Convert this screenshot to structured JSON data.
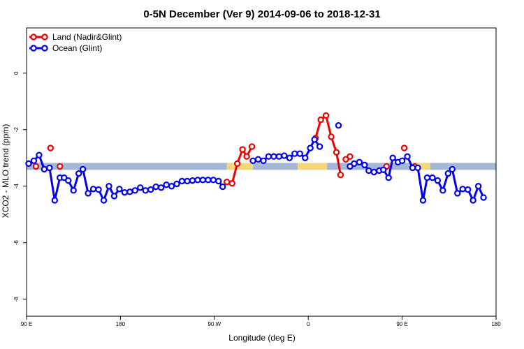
{
  "chart_data": {
    "type": "line",
    "title": "0-5N December (Ver 9)   2014-09-06 to 2018-12-31",
    "xlabel": "Longitude (deg E)",
    "ylabel": "XCO2 - MLO trend (ppm)",
    "xlim": [
      90,
      540
    ],
    "ylim": [
      -8.6,
      1.6
    ],
    "x_ticks": [
      {
        "value": 90,
        "label": "90 E"
      },
      {
        "value": 180,
        "label": "180"
      },
      {
        "value": 270,
        "label": "90 W"
      },
      {
        "value": 360,
        "label": "0"
      },
      {
        "value": 450,
        "label": "90 E"
      },
      {
        "value": 540,
        "label": "180"
      }
    ],
    "y_ticks": [
      {
        "value": 0,
        "label": "0"
      },
      {
        "value": -2,
        "label": "-2"
      },
      {
        "value": -4,
        "label": "-4"
      },
      {
        "value": -6,
        "label": "-6"
      },
      {
        "value": -8,
        "label": "-8"
      }
    ],
    "reference_band": {
      "y": -3.3,
      "segments": [
        {
          "x": [
            90,
            282
          ],
          "color": "#a5b8d8"
        },
        {
          "x": [
            282,
            307
          ],
          "color": "#f5d77a"
        },
        {
          "x": [
            307,
            350
          ],
          "color": "#a5b8d8"
        },
        {
          "x": [
            350,
            378
          ],
          "color": "#f5d77a"
        },
        {
          "x": [
            378,
            458
          ],
          "color": "#a5b8d8"
        },
        {
          "x": [
            458,
            477
          ],
          "color": "#f5d77a"
        },
        {
          "x": [
            477,
            540
          ],
          "color": "#a5b8d8"
        }
      ]
    },
    "legend": {
      "position": "top-left"
    },
    "series": [
      {
        "name": "Land (Nadir&Glint)",
        "color": "#ee0000",
        "points": [
          [
            99,
            -3.3
          ],
          [
            113,
            -2.65
          ],
          [
            122,
            -3.3
          ],
          [
            282,
            -3.85
          ],
          [
            287,
            -3.9
          ],
          [
            292,
            -3.2
          ],
          [
            297,
            -2.7
          ],
          [
            301,
            -2.95
          ],
          [
            306,
            -2.6
          ],
          [
            367,
            -2.3
          ],
          [
            372,
            -1.65
          ],
          [
            377,
            -1.5
          ],
          [
            382,
            -2.25
          ],
          [
            387,
            -2.8
          ],
          [
            391,
            -3.6
          ],
          [
            396,
            -3.05
          ],
          [
            400,
            -2.95
          ],
          [
            435,
            -3.3
          ],
          [
            452,
            -2.65
          ],
          [
            462,
            -3.3
          ]
        ],
        "segments": [
          [
            3,
            4,
            5,
            6,
            7,
            8
          ],
          [
            9,
            10,
            11,
            12,
            13,
            14
          ],
          [
            15,
            16
          ]
        ]
      },
      {
        "name": "Ocean (Glint)",
        "color": "#0000ee",
        "points": [
          [
            92,
            -3.2
          ],
          [
            97,
            -3.1
          ],
          [
            102,
            -2.9
          ],
          [
            107,
            -3.4
          ],
          [
            112,
            -3.35
          ],
          [
            117,
            -4.5
          ],
          [
            122,
            -3.7
          ],
          [
            126,
            -3.7
          ],
          [
            130,
            -3.8
          ],
          [
            135,
            -4.15
          ],
          [
            140,
            -3.55
          ],
          [
            144,
            -3.4
          ],
          [
            149,
            -4.25
          ],
          [
            154,
            -4.1
          ],
          [
            159,
            -4.12
          ],
          [
            164,
            -4.5
          ],
          [
            169,
            -4.0
          ],
          [
            174,
            -4.35
          ],
          [
            179,
            -4.1
          ],
          [
            184,
            -4.22
          ],
          [
            189,
            -4.2
          ],
          [
            194,
            -4.15
          ],
          [
            199,
            -4.05
          ],
          [
            204,
            -4.15
          ],
          [
            209,
            -4.12
          ],
          [
            214,
            -4.02
          ],
          [
            219,
            -4.05
          ],
          [
            224,
            -3.95
          ],
          [
            229,
            -4.0
          ],
          [
            234,
            -3.92
          ],
          [
            239,
            -3.82
          ],
          [
            244,
            -3.82
          ],
          [
            249,
            -3.8
          ],
          [
            254,
            -3.78
          ],
          [
            259,
            -3.78
          ],
          [
            264,
            -3.78
          ],
          [
            269,
            -3.78
          ],
          [
            274,
            -3.82
          ],
          [
            278,
            -4.02
          ],
          [
            307,
            -3.1
          ],
          [
            312,
            -3.05
          ],
          [
            317,
            -3.1
          ],
          [
            322,
            -2.95
          ],
          [
            327,
            -2.95
          ],
          [
            332,
            -2.95
          ],
          [
            337,
            -2.92
          ],
          [
            342,
            -3.0
          ],
          [
            347,
            -2.85
          ],
          [
            352,
            -2.85
          ],
          [
            357,
            -3.0
          ],
          [
            362,
            -2.65
          ],
          [
            366,
            -2.35
          ],
          [
            371,
            -2.6
          ],
          [
            389,
            -1.85
          ],
          [
            400,
            -3.3
          ],
          [
            404,
            -3.2
          ],
          [
            409,
            -3.15
          ],
          [
            414,
            -3.25
          ],
          [
            418,
            -3.45
          ],
          [
            423,
            -3.5
          ],
          [
            428,
            -3.45
          ],
          [
            432,
            -3.42
          ],
          [
            437,
            -3.7
          ],
          [
            441,
            -3.0
          ],
          [
            446,
            -3.15
          ],
          [
            450,
            -3.1
          ],
          [
            455,
            -2.95
          ],
          [
            460,
            -3.35
          ],
          [
            465,
            -3.35
          ],
          [
            470,
            -4.5
          ],
          [
            474,
            -3.7
          ],
          [
            479,
            -3.7
          ],
          [
            484,
            -3.8
          ],
          [
            489,
            -4.15
          ],
          [
            494,
            -3.55
          ],
          [
            498,
            -3.4
          ],
          [
            503,
            -4.25
          ],
          [
            508,
            -4.1
          ],
          [
            513,
            -4.12
          ],
          [
            518,
            -4.5
          ],
          [
            523,
            -4.0
          ],
          [
            528,
            -4.4
          ]
        ],
        "segments": [
          [
            0,
            1,
            2,
            3,
            4,
            5,
            6,
            7,
            8,
            9,
            10,
            11,
            12,
            13,
            14,
            15,
            16,
            17,
            18,
            19,
            20,
            21,
            22,
            23,
            24,
            25,
            26,
            27,
            28,
            29,
            30,
            31,
            32,
            33,
            34,
            35,
            36,
            37,
            38
          ],
          [
            39,
            40,
            41,
            42,
            43,
            44,
            45,
            46,
            47,
            48,
            49,
            50,
            51,
            52
          ],
          [
            54,
            55,
            56,
            57,
            58,
            59,
            60,
            61,
            62,
            63,
            64,
            65,
            66,
            67,
            68,
            69,
            70,
            71,
            72,
            73,
            74,
            75,
            76,
            77,
            78,
            79,
            80,
            81
          ]
        ]
      }
    ]
  }
}
